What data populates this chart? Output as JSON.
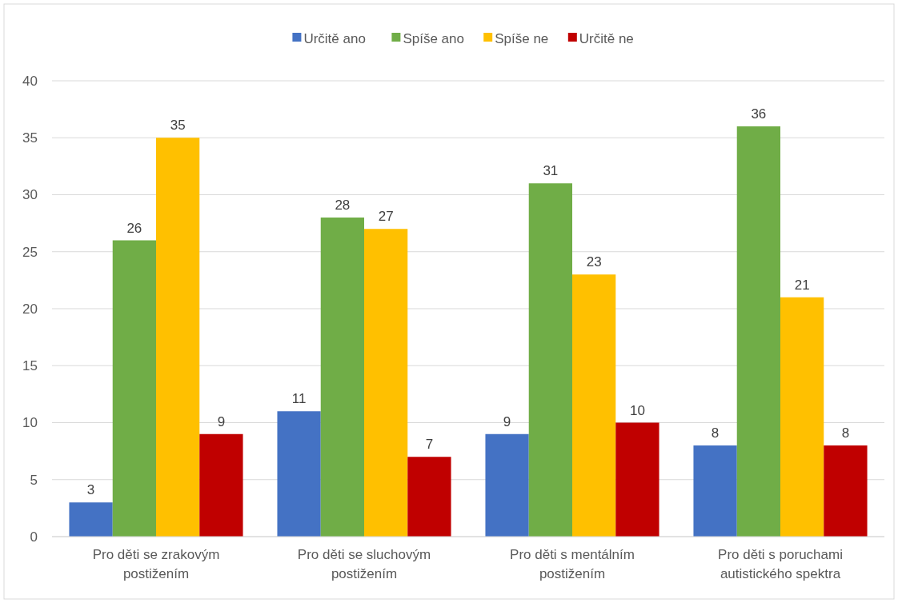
{
  "chart_data": {
    "type": "bar",
    "categories": [
      "Pro děti se zrakovým postižením",
      "Pro děti se sluchovým postižením",
      "Pro děti s mentálním postižením",
      "Pro děti s poruchami autistického spektra"
    ],
    "series": [
      {
        "name": "Určitě ano",
        "color": "#4472c4",
        "values": [
          3,
          11,
          9,
          8
        ]
      },
      {
        "name": "Spíše ano",
        "color": "#70ad47",
        "values": [
          26,
          28,
          31,
          36
        ]
      },
      {
        "name": "Spíše ne",
        "color": "#ffc000",
        "values": [
          35,
          27,
          23,
          21
        ]
      },
      {
        "name": "Určitě ne",
        "color": "#c00000",
        "values": [
          9,
          7,
          10,
          8
        ]
      }
    ],
    "ylim": [
      0,
      40
    ],
    "yticks": [
      0,
      5,
      10,
      15,
      20,
      25,
      30,
      35,
      40
    ],
    "grid": "y",
    "legend": "top",
    "data_labels": true
  }
}
